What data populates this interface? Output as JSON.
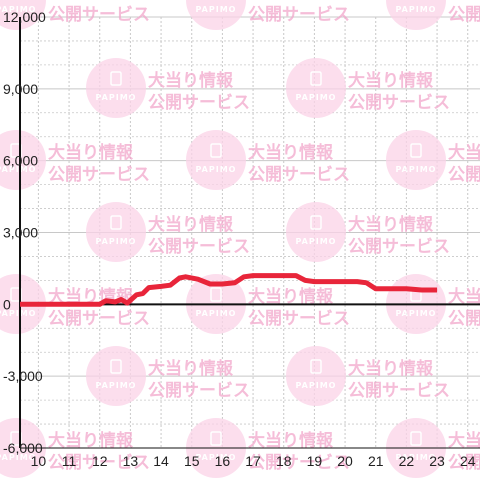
{
  "chart_data": {
    "type": "line",
    "title": "",
    "xlabel": "",
    "ylabel": "",
    "xlim": [
      9.4,
      24.4
    ],
    "ylim": [
      -6000,
      12000
    ],
    "x_ticks": [
      10,
      11,
      12,
      13,
      14,
      15,
      16,
      17,
      18,
      19,
      20,
      21,
      22,
      23,
      24
    ],
    "x_tick_labels": [
      "10",
      "11",
      "12",
      "13",
      "14",
      "15",
      "16",
      "17",
      "18",
      "19",
      "20",
      "21",
      "22",
      "23",
      "24"
    ],
    "y_ticks": [
      -6000,
      -3000,
      0,
      3000,
      6000,
      9000,
      12000
    ],
    "y_tick_labels": [
      "-6,000",
      "-3,000",
      "0",
      "3,000",
      "6,000",
      "9,000",
      "12,000"
    ],
    "grid": true,
    "legend": "none",
    "colors": {
      "line": "#e8253a",
      "grid": "#c8c8c8",
      "axis": "#111111"
    },
    "series": [
      {
        "x": [
          9.4,
          12.0,
          12.2,
          12.5,
          12.7,
          12.9,
          13.2,
          13.4,
          13.6,
          14.0,
          14.3,
          14.6,
          14.8,
          15.2,
          15.6,
          16.0,
          16.4,
          16.7,
          17.0,
          17.5,
          18.0,
          18.4,
          18.7,
          19.0,
          19.5,
          20.0,
          20.4,
          20.7,
          21.0,
          21.5,
          22.0,
          22.5,
          23.0
        ],
        "y": [
          0,
          0,
          150,
          100,
          200,
          50,
          400,
          450,
          700,
          750,
          800,
          1100,
          1150,
          1050,
          850,
          850,
          900,
          1150,
          1200,
          1200,
          1200,
          1200,
          1000,
          950,
          950,
          950,
          950,
          900,
          650,
          650,
          650,
          600,
          600
        ]
      }
    ],
    "watermark": {
      "logo_text": "PAPIMO",
      "line1": "大当り情報",
      "line2": "公開サービス"
    }
  }
}
